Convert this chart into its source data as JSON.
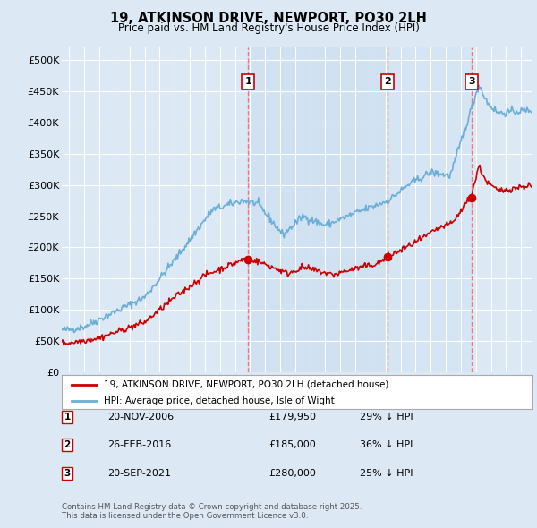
{
  "title": "19, ATKINSON DRIVE, NEWPORT, PO30 2LH",
  "subtitle": "Price paid vs. HM Land Registry's House Price Index (HPI)",
  "background_color": "#dce9f5",
  "plot_bg_color": "#dce9f5",
  "shaded_region_color": "#c8ddf0",
  "ylim": [
    0,
    520000
  ],
  "yticks": [
    0,
    50000,
    100000,
    150000,
    200000,
    250000,
    300000,
    350000,
    400000,
    450000,
    500000
  ],
  "ytick_labels": [
    "£0",
    "£50K",
    "£100K",
    "£150K",
    "£200K",
    "£250K",
    "£300K",
    "£350K",
    "£400K",
    "£450K",
    "£500K"
  ],
  "xlim_start": 1994.5,
  "xlim_end": 2025.7,
  "xticks": [
    1995,
    1996,
    1997,
    1998,
    1999,
    2000,
    2001,
    2002,
    2003,
    2004,
    2005,
    2006,
    2007,
    2008,
    2009,
    2010,
    2011,
    2012,
    2013,
    2014,
    2015,
    2016,
    2017,
    2018,
    2019,
    2020,
    2021,
    2022,
    2023,
    2024,
    2025
  ],
  "hpi_line_color": "#6baed6",
  "price_line_color": "#cc0000",
  "sale_marker_color": "#cc0000",
  "vline_color": "#ff6666",
  "num_box_edge_color": "#cc0000",
  "sales": [
    {
      "num": 1,
      "date_label": "20-NOV-2006",
      "year": 2006.89,
      "price": 179950,
      "price_label": "£179,950",
      "pct": "29% ↓ HPI"
    },
    {
      "num": 2,
      "date_label": "26-FEB-2016",
      "year": 2016.16,
      "price": 185000,
      "price_label": "£185,000",
      "pct": "36% ↓ HPI"
    },
    {
      "num": 3,
      "date_label": "20-SEP-2021",
      "year": 2021.72,
      "price": 280000,
      "price_label": "£280,000",
      "pct": "25% ↓ HPI"
    }
  ],
  "legend_line1": "19, ATKINSON DRIVE, NEWPORT, PO30 2LH (detached house)",
  "legend_line2": "HPI: Average price, detached house, Isle of Wight",
  "footer1": "Contains HM Land Registry data © Crown copyright and database right 2025.",
  "footer2": "This data is licensed under the Open Government Licence v3.0."
}
